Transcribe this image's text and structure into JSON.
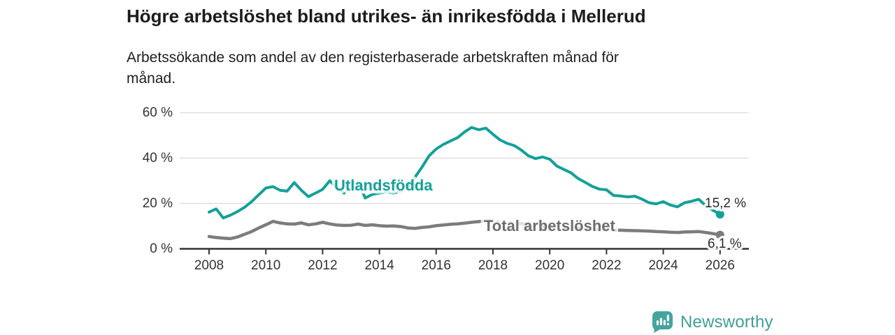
{
  "header": {
    "title": "Högre arbetslöshet bland utrikes- än inrikesfödda i Mellerud",
    "subtitle_line1": "Arbetssökande som andel av den registerbaserade arbetskraften månad för",
    "subtitle_line2": "månad."
  },
  "footer": {
    "brand": "Newsworthy"
  },
  "colors": {
    "utlandsfodda": "#13a099",
    "total": "#7c7c7c",
    "total_label": "#6d6d6d",
    "axis": "#333333",
    "grid": "#dcdcdc",
    "value_label_text": "#2b2b2b",
    "brand_teal": "#45a59e"
  },
  "chart_data": {
    "type": "line",
    "title": "Högre arbetslöshet bland utrikes- än inrikesfödda i Mellerud",
    "subtitle": "Arbetssökande som andel av den registerbaserade arbetskraften månad för månad.",
    "xlabel": "",
    "ylabel": "",
    "grid": "horizontal",
    "legend_position": "inline-labels",
    "ylim": [
      0,
      62
    ],
    "x_ticks": [
      2008,
      2010,
      2012,
      2014,
      2016,
      2018,
      2020,
      2022,
      2024,
      2026
    ],
    "y_tick_values": [
      0,
      20,
      40,
      60
    ],
    "y_tick_labels": [
      "0 %",
      "20 %",
      "40 %",
      "60 %"
    ],
    "x_start": 2008.0,
    "x_step_years": 0.25,
    "unit": "%",
    "series": [
      {
        "name": "Utlandsfödda",
        "color": "#13a099",
        "end_label": "15,2 %",
        "end_value": 15.2,
        "values": [
          16.2,
          17.6,
          13.6,
          14.8,
          16.4,
          18.3,
          20.8,
          23.8,
          26.8,
          27.4,
          25.8,
          25.4,
          29.2,
          25.8,
          23.0,
          24.6,
          26.2,
          30.0,
          26.8,
          24.6,
          28.6,
          29.4,
          22.4,
          24.0,
          24.6,
          25.2,
          24.6,
          25.4,
          27.2,
          31.5,
          36.0,
          41.0,
          44.0,
          46.0,
          47.5,
          49.0,
          51.5,
          53.5,
          52.5,
          53.2,
          50.5,
          48.0,
          46.5,
          45.5,
          43.5,
          41.0,
          39.8,
          40.5,
          39.5,
          36.5,
          35.0,
          33.5,
          31.0,
          29.3,
          27.5,
          26.3,
          26.0,
          23.5,
          23.3,
          22.9,
          23.2,
          21.9,
          20.3,
          19.8,
          20.8,
          19.3,
          18.5,
          20.3,
          21.0,
          21.8,
          19.0,
          17.0,
          15.2
        ]
      },
      {
        "name": "Total arbetslöshet",
        "color": "#7c7c7c",
        "end_label": "6,1 %",
        "end_value": 6.1,
        "values": [
          5.4,
          5.0,
          4.7,
          4.5,
          5.2,
          6.4,
          7.6,
          9.2,
          10.6,
          12.1,
          11.4,
          11.0,
          10.9,
          11.4,
          10.6,
          11.0,
          11.7,
          11.0,
          10.5,
          10.3,
          10.4,
          10.9,
          10.3,
          10.6,
          10.2,
          10.0,
          10.1,
          9.8,
          9.2,
          9.0,
          9.4,
          9.7,
          10.2,
          10.5,
          10.8,
          11.0,
          11.3,
          11.7,
          12.0,
          12.3,
          12.2,
          11.9,
          11.6,
          11.3,
          11.0,
          10.6,
          10.2,
          9.9,
          9.7,
          9.6,
          9.4,
          9.2,
          9.0,
          8.8,
          8.6,
          8.4,
          8.3,
          8.2,
          8.2,
          8.1,
          8.0,
          7.9,
          7.8,
          7.6,
          7.5,
          7.3,
          7.2,
          7.4,
          7.5,
          7.6,
          7.2,
          6.7,
          6.1
        ]
      }
    ]
  }
}
